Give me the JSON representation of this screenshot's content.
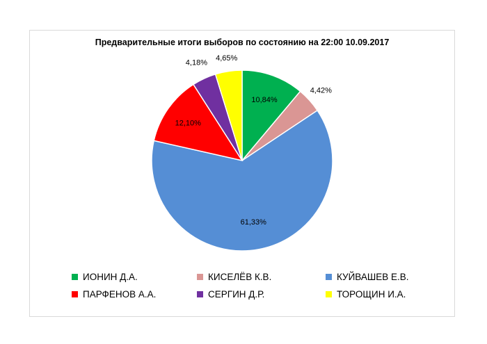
{
  "chart_data": {
    "type": "pie",
    "title": "Предварительные итоги выборов по состоянию на 22:00 10.09.2017",
    "slices": [
      {
        "name": "ИОНИН Д.А.",
        "value": 10.84,
        "label": "10,84%",
        "color": "#00b050"
      },
      {
        "name": "КИСЕЛЁВ К.В.",
        "value": 4.42,
        "label": "4,42%",
        "color": "#da9694"
      },
      {
        "name": "КУЙВАШЕВ Е.В.",
        "value": 61.33,
        "label": "61,33%",
        "color": "#558ed5"
      },
      {
        "name": "ПАРФЕНОВ А.А.",
        "value": 12.1,
        "label": "12,10%",
        "color": "#ff0000"
      },
      {
        "name": "СЕРГИН Д.Р.",
        "value": 4.18,
        "label": "4,18%",
        "color": "#7030a0"
      },
      {
        "name": "ТОРОЩИН И.А.",
        "value": 4.65,
        "label": "4,65%",
        "color": "#ffff00"
      }
    ],
    "legend_position": "bottom"
  }
}
